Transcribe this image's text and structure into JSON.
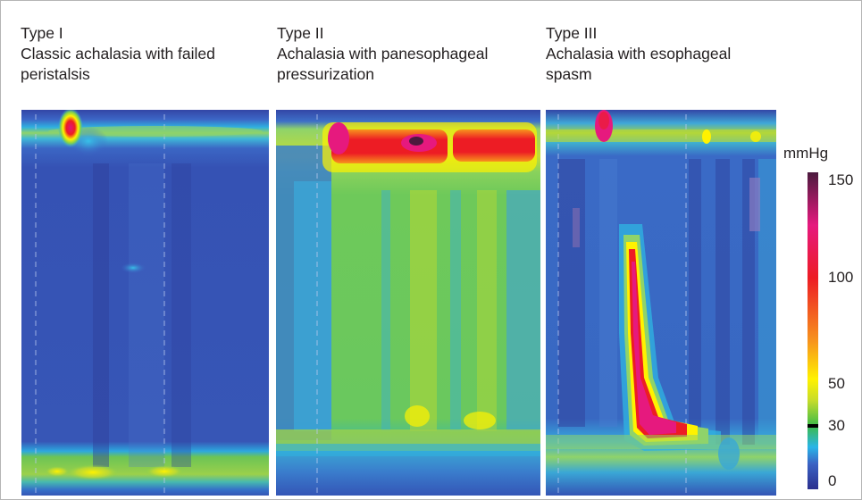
{
  "panels": [
    {
      "id": "type1",
      "title": "Type I",
      "subtitle_line1": "Classic achalasia with failed",
      "subtitle_line2": "peristalsis"
    },
    {
      "id": "type2",
      "title": "Type II",
      "subtitle_line1": "Achalasia with panesophageal",
      "subtitle_line2": "pressurization"
    },
    {
      "id": "type3",
      "title": "Type III",
      "subtitle_line1": "Achalasia with esophageal",
      "subtitle_line2": "spasm"
    }
  ],
  "colorbar": {
    "unit": "mmHg",
    "ticks": [
      "150",
      "100",
      "50",
      "30",
      "0"
    ],
    "tick_values": [
      150,
      100,
      50,
      30,
      0
    ],
    "range": [
      0,
      150
    ],
    "highlight_value": 30,
    "stops": [
      {
        "v": 0,
        "color": "#2b2f8e"
      },
      {
        "v": 12,
        "color": "#3a62c4"
      },
      {
        "v": 20,
        "color": "#29b5e8"
      },
      {
        "v": 30,
        "color": "#3dbb4a"
      },
      {
        "v": 42,
        "color": "#c6dc2a"
      },
      {
        "v": 52,
        "color": "#fff200"
      },
      {
        "v": 70,
        "color": "#f7941d"
      },
      {
        "v": 100,
        "color": "#ed1c24"
      },
      {
        "v": 125,
        "color": "#e6197e"
      },
      {
        "v": 150,
        "color": "#4b1a3e"
      }
    ]
  },
  "chart_data": {
    "type": "heatmap",
    "title": "",
    "xlabel": "",
    "ylabel": "",
    "value_unit": "mmHg",
    "value_range": [
      0,
      150
    ],
    "series": [
      {
        "name": "Type I",
        "features": [
          "upper sphincter band",
          "low body pressure",
          "non-relaxing lower sphincter band"
        ]
      },
      {
        "name": "Type II",
        "features": [
          "upper sphincter band",
          "uniform pan-esophageal pressurization 30–50 mmHg",
          "lower sphincter band"
        ]
      },
      {
        "name": "Type III",
        "features": [
          "upper sphincter band",
          "premature spastic contraction >100 mmHg",
          "lower sphincter band"
        ]
      }
    ]
  }
}
